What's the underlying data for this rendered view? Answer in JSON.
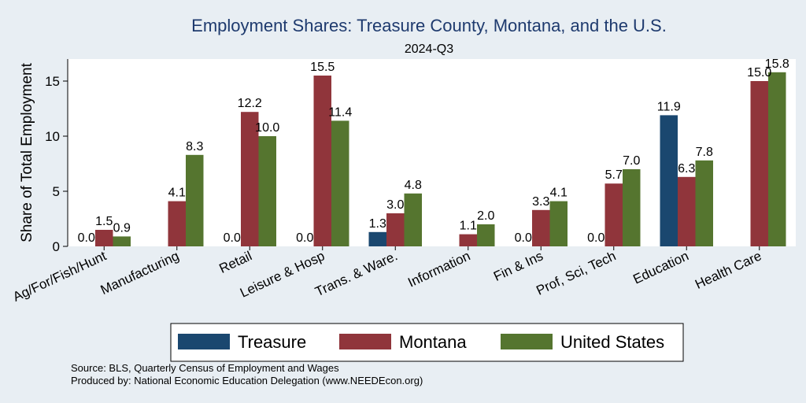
{
  "chart_data": {
    "type": "bar",
    "title": "Employment Shares: Treasure County, Montana, and the U.S.",
    "subtitle": "2024-Q3",
    "ylabel": "Share of Total Employment",
    "xlabel": "",
    "ylim": [
      0,
      17
    ],
    "yticks": [
      0,
      5,
      10,
      15
    ],
    "grid": false,
    "legend_position": "bottom",
    "categories": [
      "Ag/For/Fish/Hunt",
      "Manufacturing",
      "Retail",
      "Leisure & Hosp",
      "Trans. & Ware.",
      "Information",
      "Fin & Ins",
      "Prof, Sci, Tech",
      "Education",
      "Health Care"
    ],
    "series": [
      {
        "name": "Treasure",
        "color": "#1a476f",
        "values": [
          0.0,
          null,
          0.0,
          0.0,
          1.3,
          null,
          0.0,
          0.0,
          11.9,
          null
        ],
        "labels": [
          "0.0",
          "",
          "0.0",
          "0.0",
          "1.3",
          "",
          "0.0",
          "0.0",
          "11.9",
          ""
        ]
      },
      {
        "name": "Montana",
        "color": "#90353b",
        "values": [
          1.5,
          4.1,
          12.2,
          15.5,
          3.0,
          1.1,
          3.3,
          5.7,
          6.3,
          15.0
        ],
        "labels": [
          "1.5",
          "4.1",
          "12.2",
          "15.5",
          "3.0",
          "1.1",
          "3.3",
          "5.7",
          "6.3",
          "15.0"
        ]
      },
      {
        "name": "United States",
        "color": "#55752f",
        "values": [
          0.9,
          8.3,
          10.0,
          11.4,
          4.8,
          2.0,
          4.1,
          7.0,
          7.8,
          15.8
        ],
        "labels": [
          "0.9",
          "8.3",
          "10.0",
          "11.4",
          "4.8",
          "2.0",
          "4.1",
          "7.0",
          "7.8",
          "15.8"
        ]
      }
    ],
    "notes": [
      "Source: BLS, Quarterly Census of Employment and Wages",
      "Produced by: National Economic Education Delegation (www.NEEDEcon.org)"
    ]
  }
}
